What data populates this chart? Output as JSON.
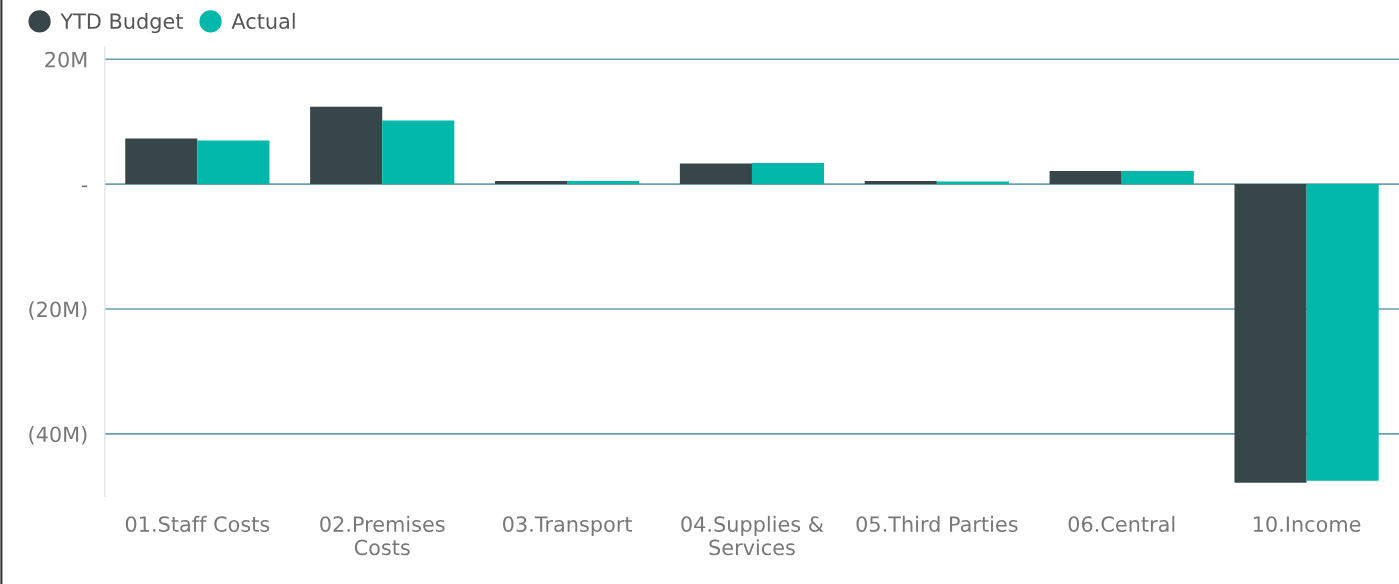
{
  "chart_data": {
    "type": "bar",
    "categories": [
      "01.Staff Costs",
      "02.Premises Costs",
      "03.Transport",
      "04.Supplies & Services",
      "05.Third Parties",
      "06.Central",
      "10.Income"
    ],
    "series": [
      {
        "name": "YTD Budget",
        "color": "#374649",
        "values": [
          7.3,
          12.4,
          0.5,
          3.3,
          0.5,
          2.1,
          -47.8
        ]
      },
      {
        "name": "Actual",
        "color": "#01b8aa",
        "values": [
          7.0,
          10.2,
          0.5,
          3.4,
          0.4,
          2.1,
          -47.5
        ]
      }
    ],
    "ylim": [
      -50,
      22
    ],
    "yticks": [
      {
        "value": 20,
        "label": "20M"
      },
      {
        "value": 0,
        "label": "-"
      },
      {
        "value": -20,
        "label": "(20M)"
      },
      {
        "value": -40,
        "label": "(40M)"
      }
    ],
    "grid": "y",
    "legend": "top left"
  }
}
